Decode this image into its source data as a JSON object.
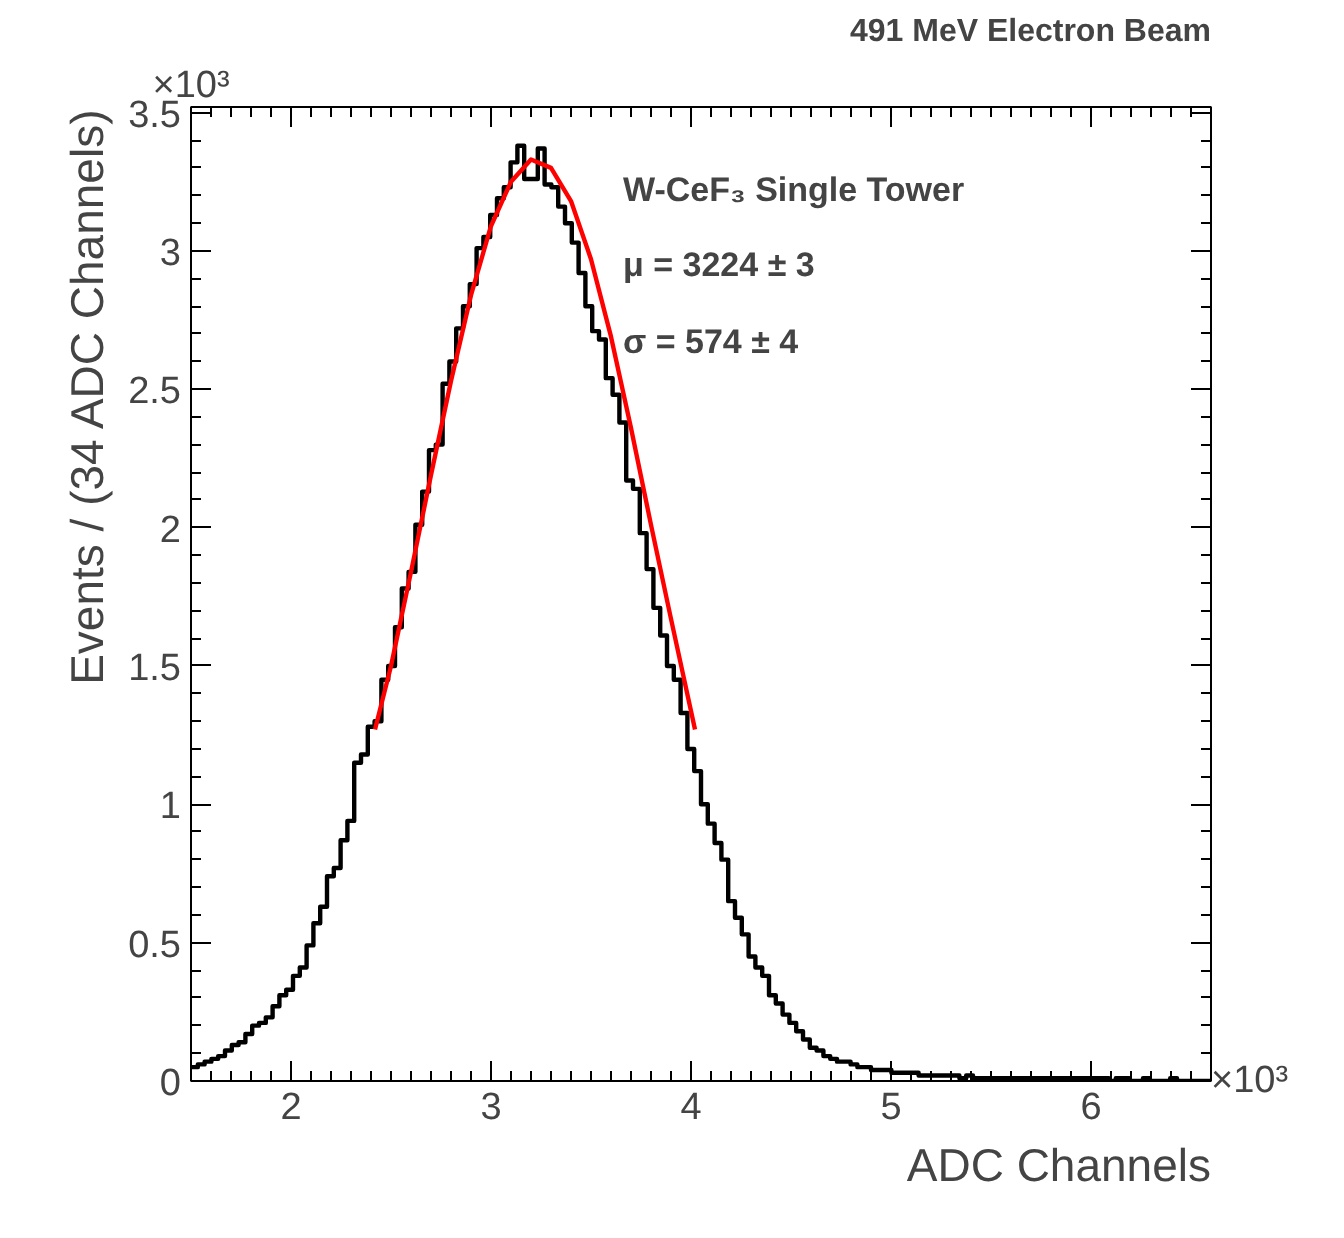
{
  "chart_data": {
    "type": "histogram",
    "title": "491 MeV Electron Beam",
    "xlabel": "ADC Channels",
    "ylabel": "Events / (34 ADC Channels)",
    "annotations": [
      "×10³",
      "×10³",
      "W-CeF₃ Single Tower",
      "μ = 3224 ± 3",
      "σ = 574 ± 4"
    ],
    "xlim": [
      1.5,
      6.6
    ],
    "xticks": [
      2,
      3,
      4,
      5,
      6
    ],
    "ylim": [
      0,
      3.52
    ],
    "yticks": [
      0,
      0.5,
      1,
      1.5,
      2,
      2.5,
      3,
      3.5
    ],
    "color": "#000000",
    "bins": [
      1.5,
      1.534,
      1.568,
      1.602,
      1.636,
      1.67,
      1.704,
      1.738,
      1.772,
      1.806,
      1.84,
      1.874,
      1.908,
      1.942,
      1.976,
      2.01,
      2.044,
      2.078,
      2.112,
      2.146,
      2.18,
      2.214,
      2.248,
      2.282,
      2.316,
      2.35,
      2.384,
      2.418,
      2.452,
      2.486,
      2.52,
      2.554,
      2.588,
      2.622,
      2.656,
      2.69,
      2.724,
      2.758,
      2.792,
      2.826,
      2.86,
      2.894,
      2.928,
      2.962,
      2.996,
      3.03,
      3.064,
      3.098,
      3.132,
      3.166,
      3.2,
      3.234,
      3.268,
      3.302,
      3.336,
      3.37,
      3.404,
      3.438,
      3.472,
      3.506,
      3.54,
      3.574,
      3.608,
      3.642,
      3.676,
      3.71,
      3.744,
      3.778,
      3.812,
      3.846,
      3.88,
      3.914,
      3.948,
      3.982,
      4.016,
      4.05,
      4.084,
      4.118,
      4.152,
      4.186,
      4.22,
      4.254,
      4.288,
      4.322,
      4.356,
      4.39,
      4.424,
      4.458,
      4.492,
      4.526,
      4.56,
      4.594,
      4.628,
      4.662,
      4.696,
      4.73,
      4.764,
      4.798,
      4.832,
      4.866,
      4.9,
      4.934,
      4.968,
      5.002,
      5.036,
      5.07,
      5.104,
      5.138,
      5.172,
      5.206,
      5.24,
      5.274,
      5.308,
      5.342,
      5.376,
      5.41,
      5.444,
      5.478,
      5.512,
      5.546,
      5.58,
      5.614,
      5.648,
      5.682,
      5.716,
      5.75,
      5.784,
      5.818,
      5.852,
      5.886,
      5.92,
      5.954,
      5.988,
      6.022,
      6.056,
      6.09,
      6.124,
      6.158,
      6.192,
      6.226,
      6.26,
      6.294,
      6.328,
      6.362,
      6.396,
      6.43,
      6.464,
      6.498,
      6.532,
      6.566,
      6.6
    ],
    "values": [
      0.05,
      0.06,
      0.07,
      0.08,
      0.09,
      0.11,
      0.13,
      0.14,
      0.17,
      0.2,
      0.21,
      0.23,
      0.27,
      0.31,
      0.33,
      0.38,
      0.41,
      0.49,
      0.57,
      0.63,
      0.74,
      0.77,
      0.87,
      0.94,
      1.15,
      1.18,
      1.28,
      1.3,
      1.45,
      1.5,
      1.64,
      1.78,
      1.84,
      2.01,
      2.13,
      2.28,
      2.3,
      2.52,
      2.6,
      2.72,
      2.8,
      2.88,
      3.01,
      3.05,
      3.13,
      3.19,
      3.23,
      3.32,
      3.38,
      3.26,
      3.26,
      3.37,
      3.24,
      3.23,
      3.16,
      3.1,
      3.03,
      2.92,
      2.8,
      2.71,
      2.68,
      2.54,
      2.48,
      2.38,
      2.17,
      2.14,
      1.98,
      1.85,
      1.71,
      1.61,
      1.5,
      1.45,
      1.33,
      1.2,
      1.12,
      1.0,
      0.93,
      0.86,
      0.8,
      0.65,
      0.59,
      0.53,
      0.45,
      0.41,
      0.38,
      0.31,
      0.28,
      0.24,
      0.21,
      0.18,
      0.15,
      0.12,
      0.11,
      0.09,
      0.08,
      0.07,
      0.07,
      0.06,
      0.05,
      0.05,
      0.04,
      0.04,
      0.04,
      0.03,
      0.03,
      0.03,
      0.03,
      0.02,
      0.02,
      0.02,
      0.02,
      0.02,
      0.02,
      0.01,
      0.02,
      0.01,
      0.01,
      0.01,
      0.01,
      0.01,
      0.01,
      0.01,
      0.01,
      0.01,
      0.01,
      0.01,
      0.01,
      0.01,
      0.01,
      0.01,
      0.01,
      0.01,
      0.01,
      0.01,
      0.01,
      0.0,
      0.01,
      0.01,
      0.0,
      0.0,
      0.01,
      0.0,
      0.0,
      0.0,
      0.01,
      0.0,
      0.0,
      0.0,
      0.0,
      0.0
    ],
    "series": [
      {
        "type": "line",
        "color": "#ff0000",
        "x": [
          2.42,
          2.5,
          2.6,
          2.7,
          2.8,
          2.9,
          3.0,
          3.1,
          3.2,
          3.3,
          3.4,
          3.5,
          3.6,
          3.7,
          3.8,
          3.9,
          4.02
        ],
        "values": [
          1.27,
          1.5,
          1.84,
          2.19,
          2.53,
          2.84,
          3.09,
          3.25,
          3.33,
          3.3,
          3.18,
          2.97,
          2.69,
          2.36,
          2.01,
          1.67,
          1.27
        ]
      }
    ],
    "grid": false
  }
}
